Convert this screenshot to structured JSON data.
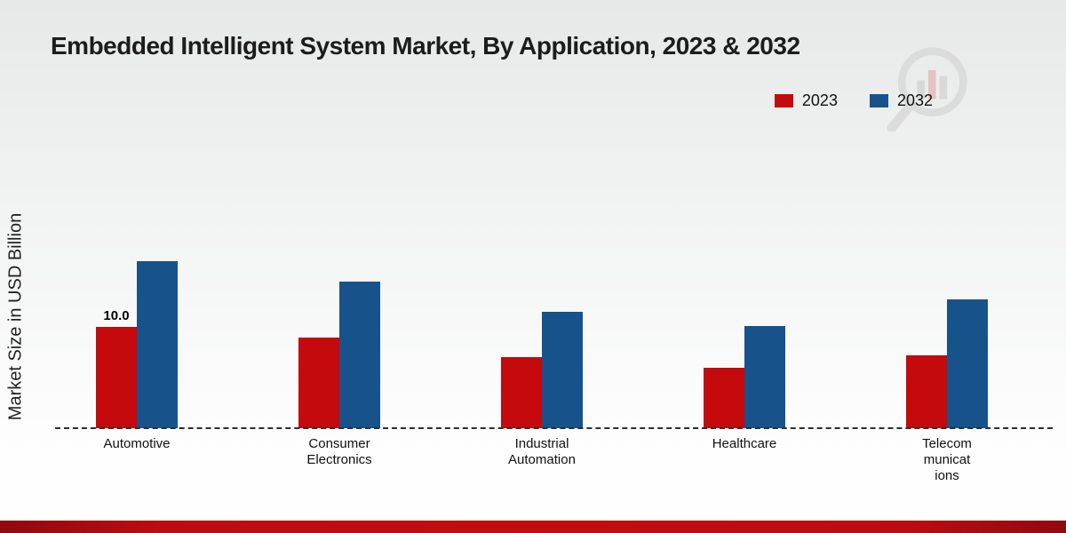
{
  "title": "Embedded Intelligent System Market, By Application, 2023 & 2032",
  "ylabel": "Market Size in USD Billion",
  "legend": [
    {
      "label": "2023",
      "color": "#c40a0d"
    },
    {
      "label": "2032",
      "color": "#17538a"
    }
  ],
  "watermark_icon": "market-research-logo",
  "category_label_lines": [
    [
      "Automotive"
    ],
    [
      "Consumer",
      "Electronics"
    ],
    [
      "Industrial",
      "Automation"
    ],
    [
      "Healthcare"
    ],
    [
      "Telecom",
      "municat",
      "ions"
    ]
  ],
  "chart_data": {
    "type": "bar",
    "title": "Embedded Intelligent System Market, By Application, 2023 & 2032",
    "xlabel": "",
    "ylabel": "Market Size in USD Billion",
    "categories": [
      "Automotive",
      "Consumer Electronics",
      "Industrial Automation",
      "Healthcare",
      "Telecommunications"
    ],
    "series": [
      {
        "name": "2023",
        "color": "#c40a0d",
        "values": [
          10.0,
          9.0,
          7.0,
          6.0,
          7.2
        ]
      },
      {
        "name": "2032",
        "color": "#17538a",
        "values": [
          16.5,
          14.5,
          11.5,
          10.1,
          12.7
        ]
      }
    ],
    "annotations": [
      {
        "category_index": 0,
        "series_index": 0,
        "text": "10.0"
      }
    ],
    "ylim": [
      0,
      18
    ],
    "grid": false,
    "legend_position": "top-right",
    "baseline_style": "dashed"
  }
}
